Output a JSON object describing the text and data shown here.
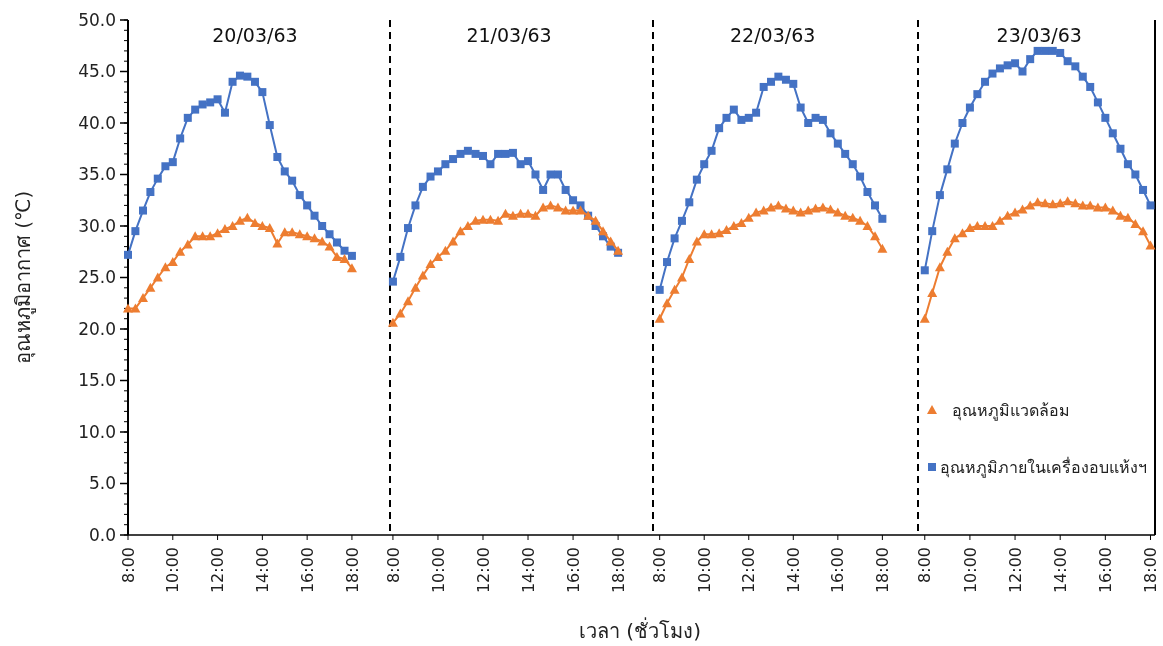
{
  "chart_data": [
    {
      "type": "line",
      "title": "20/03/63",
      "ylabel": "อุณหภูมิอากาศ (℃)",
      "x": [
        8,
        8.33,
        8.67,
        9,
        9.33,
        9.67,
        10,
        10.33,
        10.67,
        11,
        11.33,
        11.67,
        12,
        12.33,
        12.67,
        13,
        13.33,
        13.67,
        14,
        14.33,
        14.67,
        15,
        15.33,
        15.67,
        16,
        16.33,
        16.67,
        17,
        17.33,
        17.67,
        18
      ],
      "xlim": [
        8,
        19.7
      ],
      "xticks": [
        {
          "value": 8,
          "label": "8:00"
        },
        {
          "value": 10,
          "label": "10:00"
        },
        {
          "value": 12,
          "label": "12:00"
        },
        {
          "value": 14,
          "label": "14:00"
        },
        {
          "value": 16,
          "label": "16:00"
        },
        {
          "value": 18,
          "label": "18:00"
        }
      ],
      "ylim": [
        0,
        50
      ],
      "yticks": [
        {
          "value": 0,
          "label": "0.0"
        },
        {
          "value": 5,
          "label": "5.0"
        },
        {
          "value": 10,
          "label": "10.0"
        },
        {
          "value": 15,
          "label": "15.0"
        },
        {
          "value": 20,
          "label": "20.0"
        },
        {
          "value": 25,
          "label": "25.0"
        },
        {
          "value": 30,
          "label": "30.0"
        },
        {
          "value": 35,
          "label": "35.0"
        },
        {
          "value": 40,
          "label": "40.0"
        },
        {
          "value": 45,
          "label": "45.0"
        },
        {
          "value": 50,
          "label": "50.0"
        }
      ],
      "grid": false,
      "legend": false,
      "series": [
        {
          "color": "#ed7d31",
          "marker": "triangle",
          "values": [
            22.0,
            22.0,
            23.0,
            24.0,
            25.0,
            26.0,
            26.5,
            27.5,
            28.2,
            29.0,
            29.0,
            29.0,
            29.3,
            29.7,
            30.0,
            30.5,
            30.8,
            30.3,
            30.0,
            29.8,
            28.3,
            29.4,
            29.4,
            29.2,
            29.0,
            28.8,
            28.5,
            28.0,
            27.0,
            26.8,
            25.9
          ]
        },
        {
          "color": "#4472c4",
          "marker": "square",
          "values": [
            27.2,
            29.5,
            31.5,
            33.3,
            34.6,
            35.8,
            36.2,
            38.5,
            40.5,
            41.3,
            41.8,
            42.0,
            42.3,
            41.0,
            44.0,
            44.6,
            44.5,
            44.0,
            43.0,
            39.8,
            36.7,
            35.3,
            34.4,
            33.0,
            32.0,
            31.0,
            30.0,
            29.2,
            28.4,
            27.6,
            27.1
          ]
        }
      ]
    },
    {
      "type": "line",
      "title": "21/03/63",
      "xlabel": "เวลา (ชั่วโมง)",
      "x": [
        8,
        8.33,
        8.67,
        9,
        9.33,
        9.67,
        10,
        10.33,
        10.67,
        11,
        11.33,
        11.67,
        12,
        12.33,
        12.67,
        13,
        13.33,
        13.67,
        14,
        14.33,
        14.67,
        15,
        15.33,
        15.67,
        16,
        16.33,
        16.67,
        17,
        17.33,
        17.67,
        18
      ],
      "xlim": [
        7.87,
        19.55
      ],
      "xticks": [
        {
          "value": 8,
          "label": "8:00"
        },
        {
          "value": 10,
          "label": "10:00"
        },
        {
          "value": 12,
          "label": "12:00"
        },
        {
          "value": 14,
          "label": "14:00"
        },
        {
          "value": 16,
          "label": "16:00"
        },
        {
          "value": 18,
          "label": "18:00"
        }
      ],
      "ylim": [
        0,
        50
      ],
      "tick_labels": "x",
      "grid": false,
      "legend": false,
      "series": [
        {
          "color": "#ed7d31",
          "marker": "triangle",
          "values": [
            20.6,
            21.5,
            22.7,
            24.0,
            25.2,
            26.3,
            27.0,
            27.6,
            28.5,
            29.5,
            30.0,
            30.5,
            30.6,
            30.6,
            30.5,
            31.2,
            31.0,
            31.2,
            31.2,
            31.0,
            31.8,
            32.0,
            31.8,
            31.5,
            31.5,
            31.5,
            31.0,
            30.5,
            29.5,
            28.5,
            27.6
          ]
        },
        {
          "color": "#4472c4",
          "marker": "square",
          "values": [
            24.6,
            27.0,
            29.8,
            32.0,
            33.8,
            34.8,
            35.3,
            36.0,
            36.5,
            37.0,
            37.3,
            37.0,
            36.8,
            36.0,
            37.0,
            37.0,
            37.1,
            36.0,
            36.3,
            35.0,
            33.5,
            35.0,
            35.0,
            33.5,
            32.5,
            32.0,
            31.0,
            30.0,
            29.0,
            28.0,
            27.4
          ]
        }
      ]
    },
    {
      "type": "line",
      "title": "22/03/63",
      "x": [
        8,
        8.33,
        8.67,
        9,
        9.33,
        9.67,
        10,
        10.33,
        10.67,
        11,
        11.33,
        11.67,
        12,
        12.33,
        12.67,
        13,
        13.33,
        13.67,
        14,
        14.33,
        14.67,
        15,
        15.33,
        15.67,
        16,
        16.33,
        16.67,
        17,
        17.33,
        17.67,
        18
      ],
      "xlim": [
        7.7,
        19.6
      ],
      "xticks": [
        {
          "value": 8,
          "label": "8:00"
        },
        {
          "value": 10,
          "label": "10:00"
        },
        {
          "value": 12,
          "label": "12:00"
        },
        {
          "value": 14,
          "label": "14:00"
        },
        {
          "value": 16,
          "label": "16:00"
        },
        {
          "value": 18,
          "label": "18:00"
        }
      ],
      "ylim": [
        0,
        50
      ],
      "tick_labels": "x",
      "grid": false,
      "legend": false,
      "series": [
        {
          "color": "#ed7d31",
          "marker": "triangle",
          "values": [
            21.0,
            22.5,
            23.8,
            25.0,
            26.8,
            28.5,
            29.2,
            29.2,
            29.3,
            29.6,
            30.0,
            30.3,
            30.8,
            31.3,
            31.5,
            31.8,
            32.0,
            31.7,
            31.5,
            31.3,
            31.5,
            31.7,
            31.8,
            31.6,
            31.3,
            31.0,
            30.8,
            30.5,
            30.0,
            29.0,
            27.8
          ]
        },
        {
          "color": "#4472c4",
          "marker": "square",
          "values": [
            23.8,
            26.5,
            28.8,
            30.5,
            32.3,
            34.5,
            36.0,
            37.3,
            39.5,
            40.5,
            41.3,
            40.3,
            40.5,
            41.0,
            43.5,
            44.0,
            44.5,
            44.2,
            43.8,
            41.5,
            40.0,
            40.5,
            40.3,
            39.0,
            38.0,
            37.0,
            36.0,
            34.8,
            33.3,
            32.0,
            30.7
          ]
        }
      ]
    },
    {
      "type": "line",
      "title": "23/03/63",
      "x": [
        8,
        8.33,
        8.67,
        9,
        9.33,
        9.67,
        10,
        10.33,
        10.67,
        11,
        11.33,
        11.67,
        12,
        12.33,
        12.67,
        13,
        13.33,
        13.67,
        14,
        14.33,
        14.67,
        15,
        15.33,
        15.67,
        16,
        16.33,
        16.67,
        17,
        17.33,
        17.67,
        18
      ],
      "xlim": [
        7.7,
        18.2
      ],
      "xticks": [
        {
          "value": 8,
          "label": "8:00"
        },
        {
          "value": 10,
          "label": "10:00"
        },
        {
          "value": 12,
          "label": "12:00"
        },
        {
          "value": 14,
          "label": "14:00"
        },
        {
          "value": 16,
          "label": "16:00"
        },
        {
          "value": 18,
          "label": "18:00"
        }
      ],
      "ylim": [
        0,
        50
      ],
      "tick_labels": "x",
      "grid": false,
      "legend": "bottom right",
      "series": [
        {
          "name": "อุณหภูมิแวดล้อม",
          "color": "#ed7d31",
          "marker": "triangle",
          "values": [
            21.0,
            23.5,
            26.0,
            27.5,
            28.8,
            29.3,
            29.8,
            30.0,
            30.0,
            30.0,
            30.5,
            31.0,
            31.3,
            31.6,
            32.0,
            32.3,
            32.2,
            32.1,
            32.2,
            32.4,
            32.2,
            32.0,
            32.0,
            31.8,
            31.8,
            31.5,
            31.0,
            30.8,
            30.2,
            29.5,
            28.1
          ]
        },
        {
          "name": "อุณหภูมิภายในเครื่องอบแห้งฯ",
          "color": "#4472c4",
          "marker": "square",
          "values": [
            25.7,
            29.5,
            33.0,
            35.5,
            38.0,
            40.0,
            41.5,
            42.8,
            44.0,
            44.8,
            45.3,
            45.6,
            45.8,
            45.0,
            46.2,
            47.0,
            47.0,
            47.0,
            46.8,
            46.0,
            45.5,
            44.5,
            43.5,
            42.0,
            40.5,
            39.0,
            37.5,
            36.0,
            35.0,
            33.5,
            32.0
          ]
        }
      ]
    }
  ]
}
